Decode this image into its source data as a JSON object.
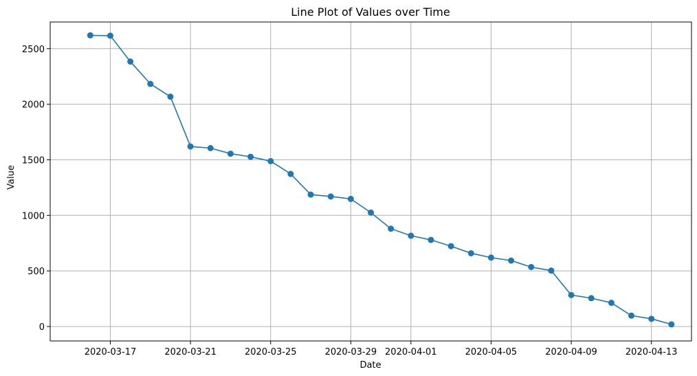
{
  "chart_data": {
    "type": "line",
    "title": "Line Plot of Values over Time",
    "xlabel": "Date",
    "ylabel": "Value",
    "grid": true,
    "x_ticks": [
      "2020-03-17",
      "2020-03-21",
      "2020-03-25",
      "2020-03-29",
      "2020-04-01",
      "2020-04-05",
      "2020-04-09",
      "2020-04-13"
    ],
    "y_ticks": [
      0,
      500,
      1000,
      1500,
      2000,
      2500
    ],
    "xlim": [
      "2020-03-14",
      "2020-04-15"
    ],
    "ylim": [
      -130,
      2740
    ],
    "series": [
      {
        "color": "#1f77b4",
        "marker": "circle",
        "x": [
          "2020-03-16",
          "2020-03-17",
          "2020-03-18",
          "2020-03-19",
          "2020-03-20",
          "2020-03-21",
          "2020-03-22",
          "2020-03-23",
          "2020-03-24",
          "2020-03-25",
          "2020-03-26",
          "2020-03-27",
          "2020-03-28",
          "2020-03-29",
          "2020-03-30",
          "2020-03-31",
          "2020-04-01",
          "2020-04-02",
          "2020-04-03",
          "2020-04-04",
          "2020-04-05",
          "2020-04-06",
          "2020-04-07",
          "2020-04-08",
          "2020-04-09",
          "2020-04-10",
          "2020-04-11",
          "2020-04-12",
          "2020-04-13",
          "2020-04-14"
        ],
        "values": [
          2620,
          2617,
          2384,
          2183,
          2068,
          1620,
          1605,
          1555,
          1527,
          1488,
          1373,
          1187,
          1170,
          1148,
          1025,
          880,
          817,
          779,
          723,
          659,
          620,
          593,
          535,
          503,
          283,
          255,
          213,
          98,
          69,
          19
        ]
      }
    ]
  }
}
